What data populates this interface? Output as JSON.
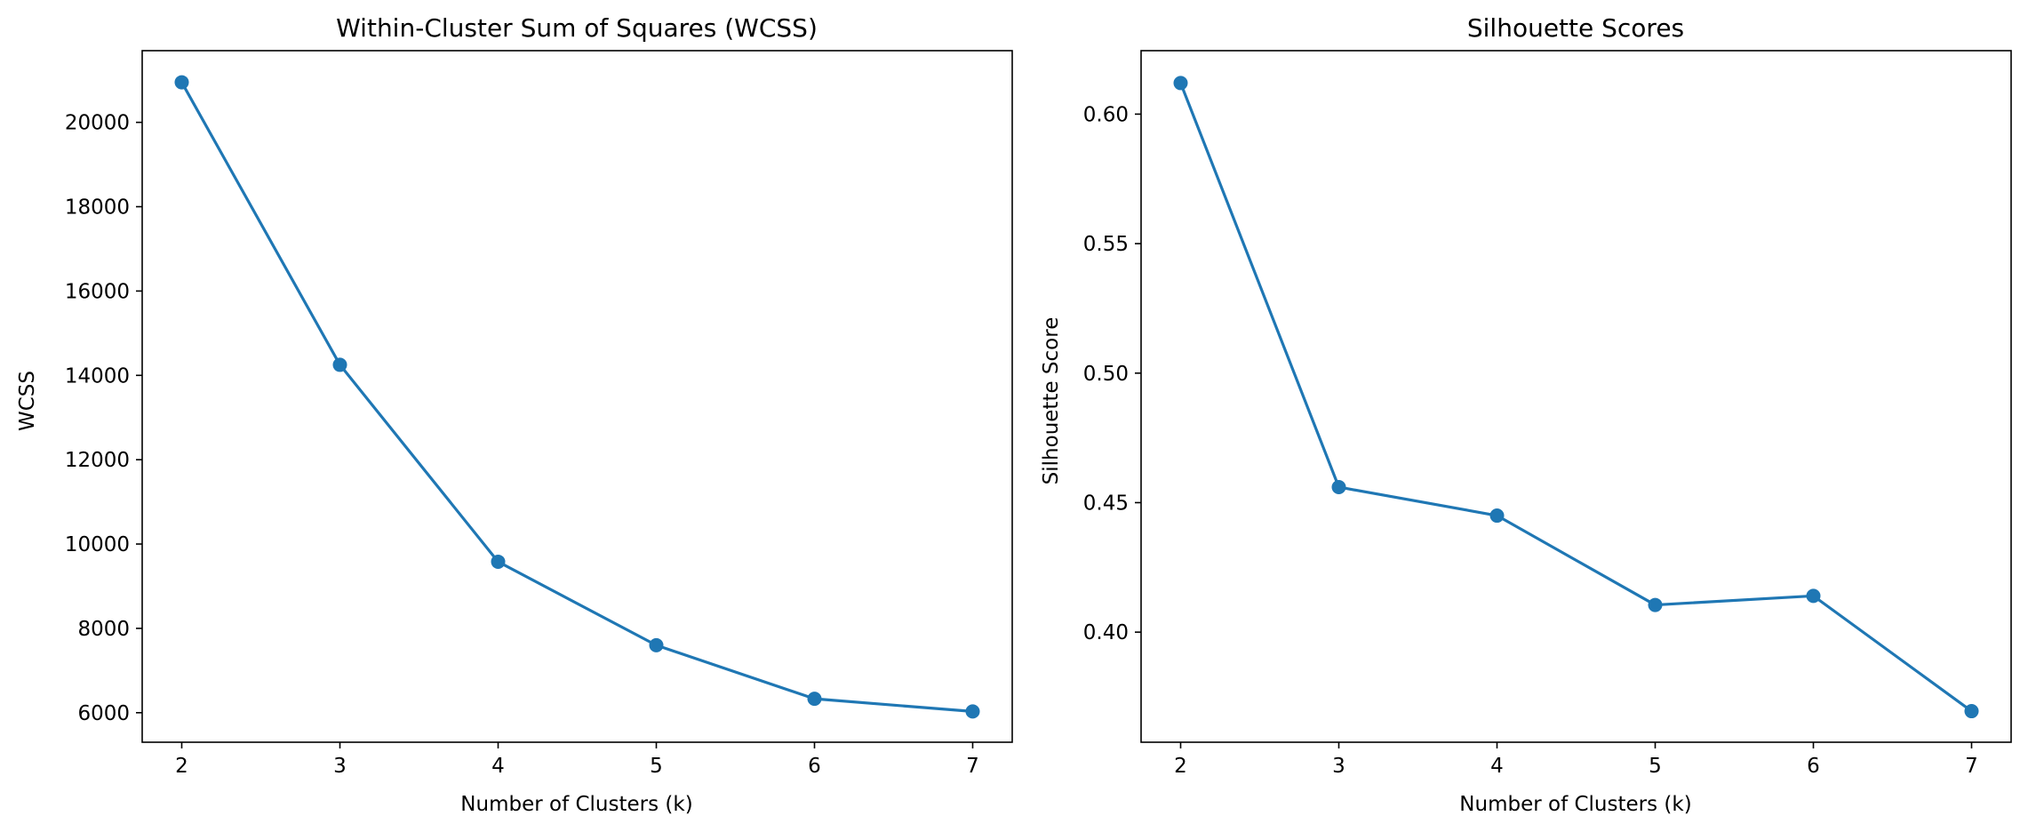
{
  "chart_data": [
    {
      "type": "line",
      "title": "Within-Cluster Sum of Squares (WCSS)",
      "xlabel": "Number of Clusters (k)",
      "ylabel": "WCSS",
      "x": [
        2,
        3,
        4,
        5,
        6,
        7
      ],
      "series": [
        {
          "values": [
            20950,
            14250,
            9580,
            7600,
            6330,
            6030
          ],
          "color": "#1f77b4",
          "marker": "circle"
        }
      ],
      "xlim": [
        1.75,
        7.25
      ],
      "ylim": [
        5300,
        21700
      ],
      "xticks": [
        2,
        3,
        4,
        5,
        6,
        7
      ],
      "yticks": [
        6000,
        8000,
        10000,
        12000,
        14000,
        16000,
        18000,
        20000
      ],
      "grid": false
    },
    {
      "type": "line",
      "title": "Silhouette Scores",
      "xlabel": "Number of Clusters (k)",
      "ylabel": "Silhouette Score",
      "x": [
        2,
        3,
        4,
        5,
        6,
        7
      ],
      "series": [
        {
          "values": [
            0.612,
            0.456,
            0.445,
            0.4105,
            0.414,
            0.3695
          ],
          "color": "#1f77b4",
          "marker": "circle"
        }
      ],
      "xlim": [
        1.75,
        7.25
      ],
      "ylim": [
        0.3575,
        0.6245
      ],
      "xticks": [
        2,
        3,
        4,
        5,
        6,
        7
      ],
      "yticks": [
        "0.40",
        "0.45",
        "0.50",
        "0.55",
        "0.60"
      ],
      "grid": false
    }
  ]
}
